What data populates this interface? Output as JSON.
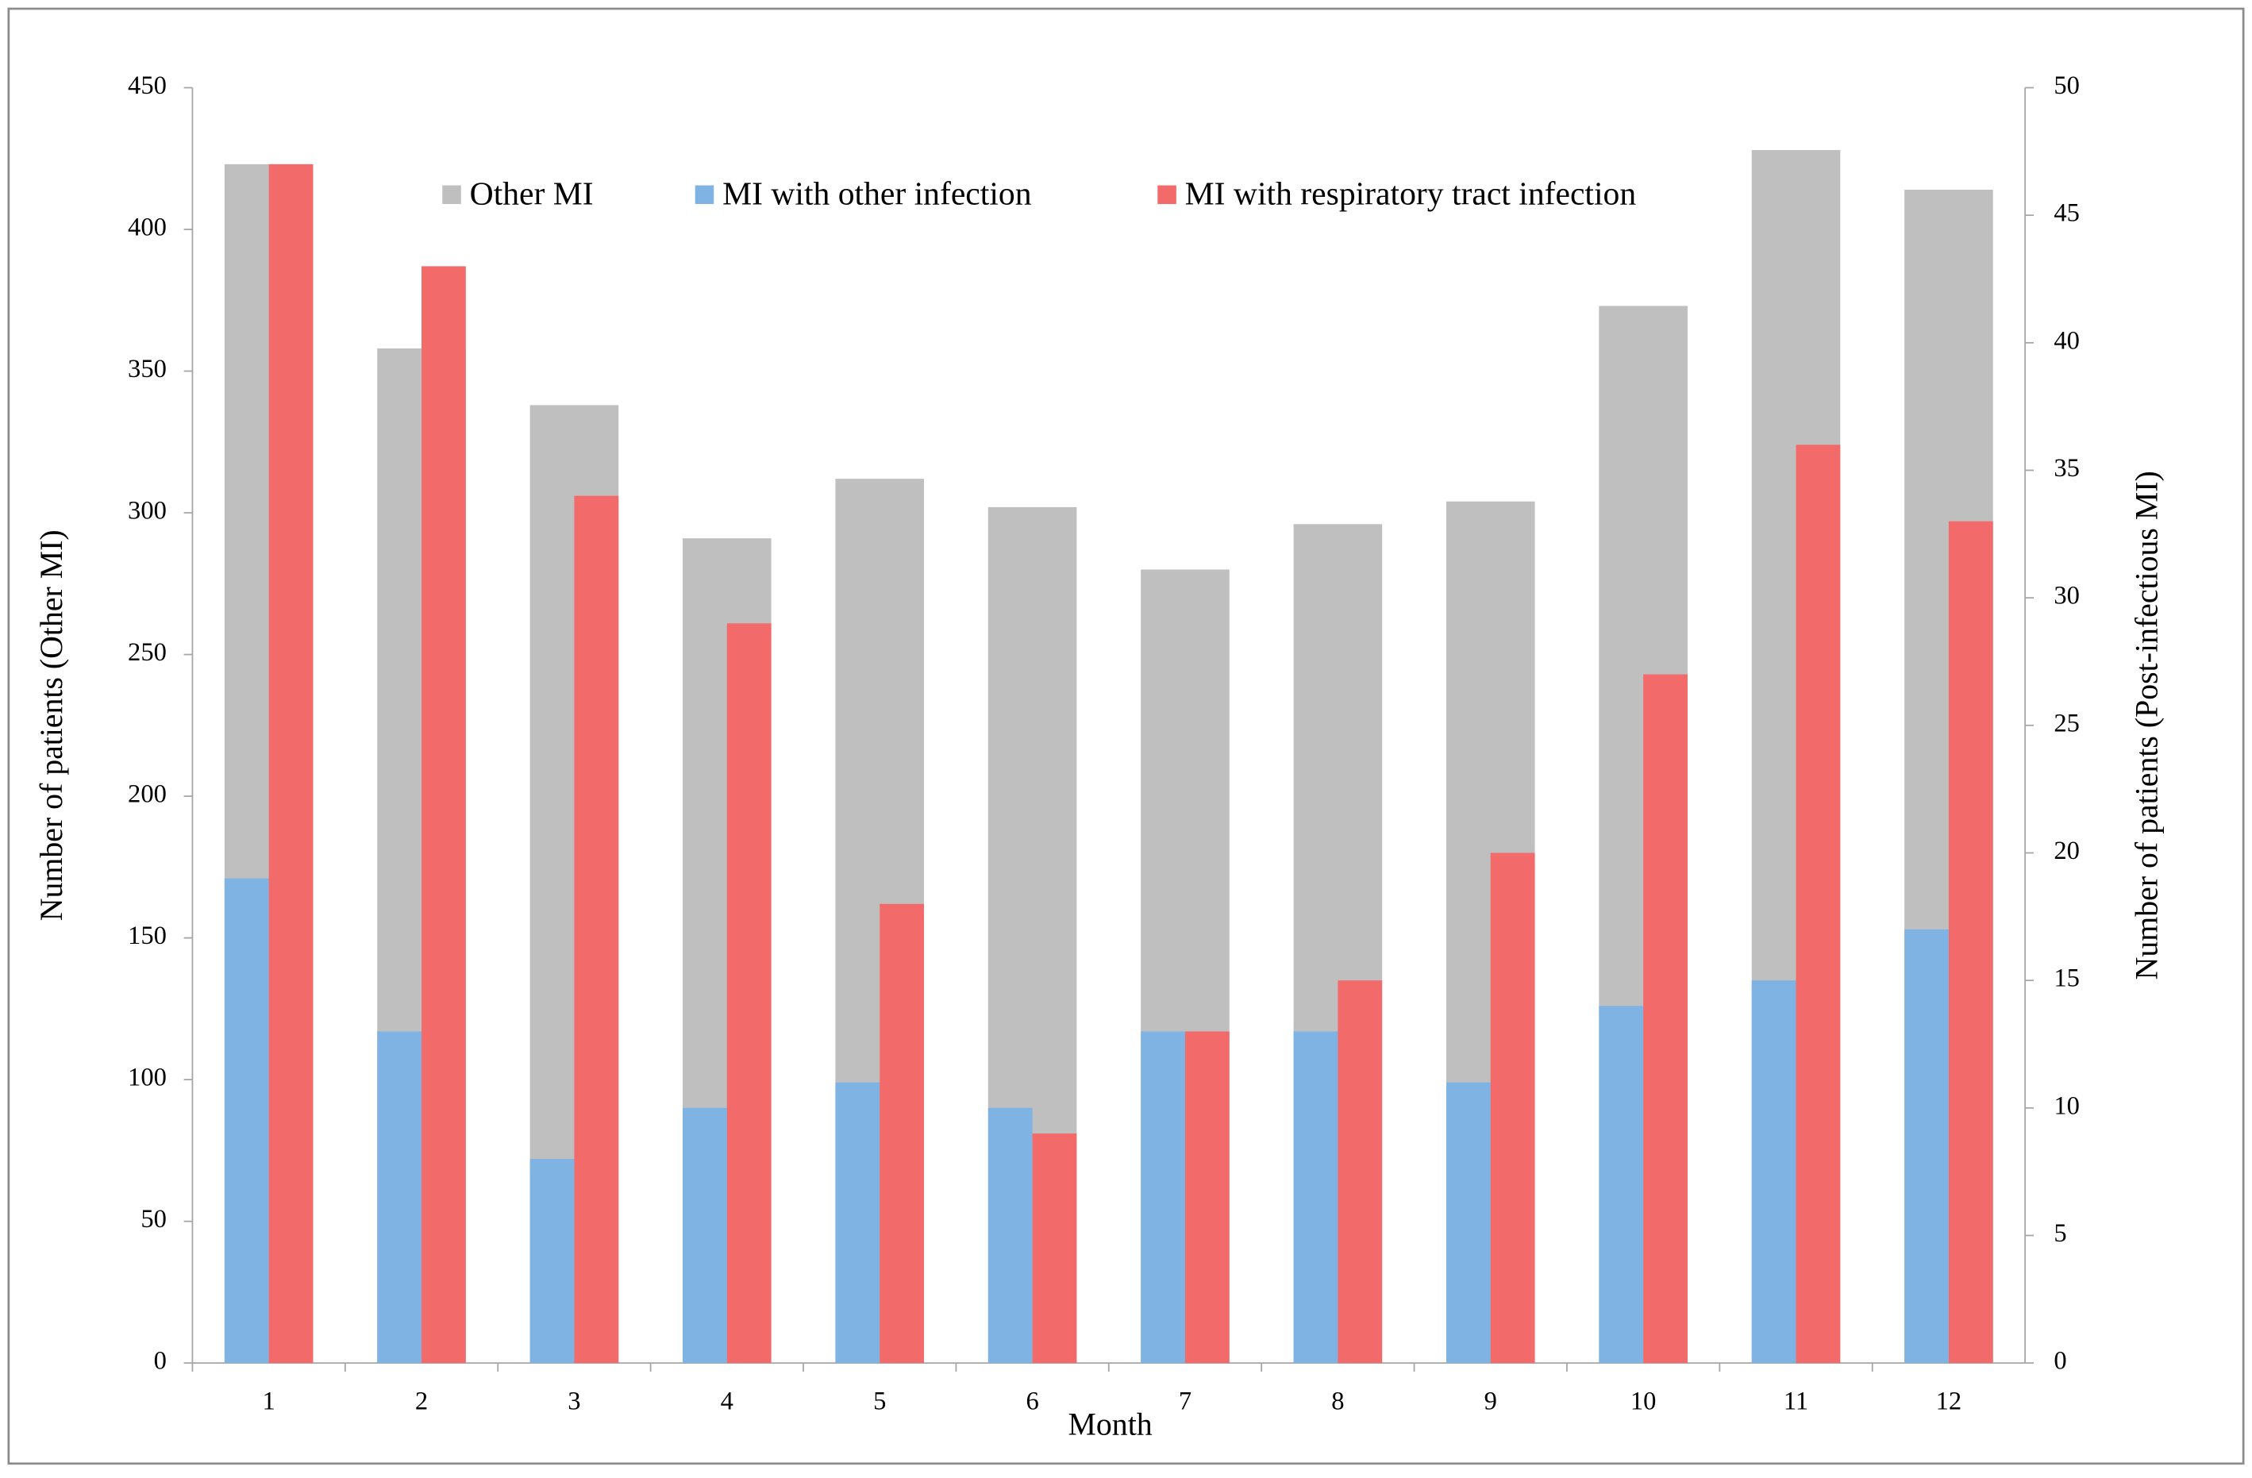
{
  "chart_data": {
    "type": "bar",
    "x_label": "Month",
    "y_label": "Number of patients  (Other MI)",
    "y2_label": "Number of patients (Post-infectious MI)",
    "categories": [
      "1",
      "2",
      "3",
      "4",
      "5",
      "6",
      "7",
      "8",
      "9",
      "10",
      "11",
      "12"
    ],
    "series": [
      {
        "name": "Other MI",
        "color": "#bfbfbf",
        "axis": "y",
        "values": [
          423,
          358,
          338,
          291,
          312,
          302,
          280,
          296,
          304,
          373,
          428,
          414
        ]
      },
      {
        "name": "MI with other infection",
        "color": "#7eb3e3",
        "axis": "y2",
        "values": [
          19,
          13,
          8,
          10,
          11,
          10,
          13,
          13,
          11,
          14,
          15,
          17
        ]
      },
      {
        "name": "MI with respiratory tract infection",
        "color": "#f26a6a",
        "axis": "y2",
        "values": [
          47,
          43,
          34,
          29,
          18,
          9,
          13,
          15,
          20,
          27,
          36,
          33
        ]
      }
    ],
    "ylim": [
      0,
      450
    ],
    "yticks": [
      0,
      50,
      100,
      150,
      200,
      250,
      300,
      350,
      400,
      450
    ],
    "y2lim": [
      0,
      50
    ],
    "y2ticks": [
      0,
      5,
      10,
      15,
      20,
      25,
      30,
      35,
      40,
      45,
      50
    ],
    "grid": false
  }
}
